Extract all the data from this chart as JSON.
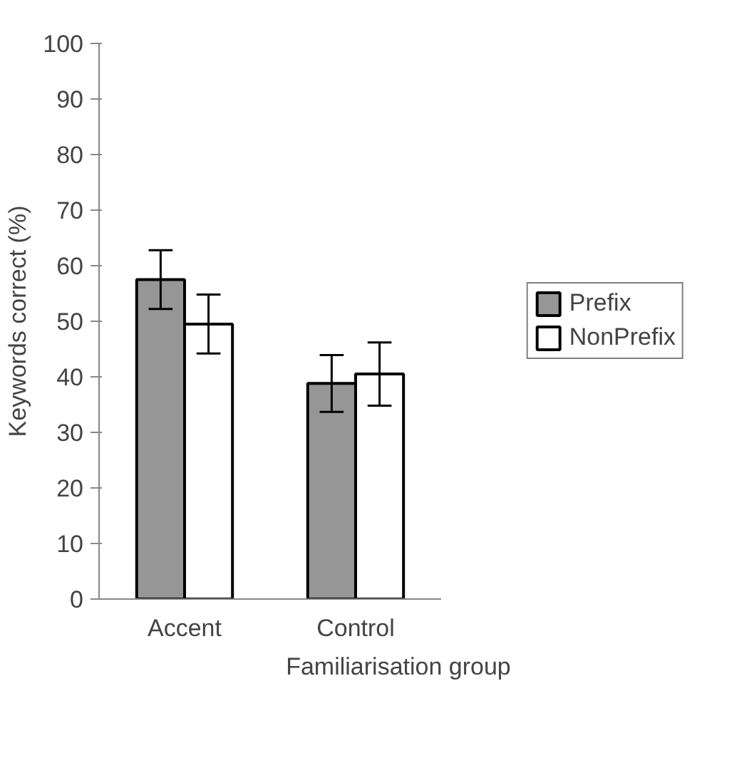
{
  "chart_data": {
    "type": "bar",
    "xlabel": "Familiarisation group",
    "ylabel": "Keywords correct (%)",
    "categories": [
      "Accent",
      "Control"
    ],
    "series": [
      {
        "name": "Prefix",
        "color": "#969696",
        "values": [
          57.5,
          38.8
        ],
        "errors": [
          5.3,
          5.1
        ]
      },
      {
        "name": "NonPrefix",
        "color": "#ffffff",
        "values": [
          49.5,
          40.5
        ],
        "errors": [
          5.3,
          5.7
        ]
      }
    ],
    "ylim": [
      0,
      100
    ],
    "yticks": [
      0,
      10,
      20,
      30,
      40,
      50,
      60,
      70,
      80,
      90,
      100
    ],
    "grid": false,
    "legend": "right"
  }
}
